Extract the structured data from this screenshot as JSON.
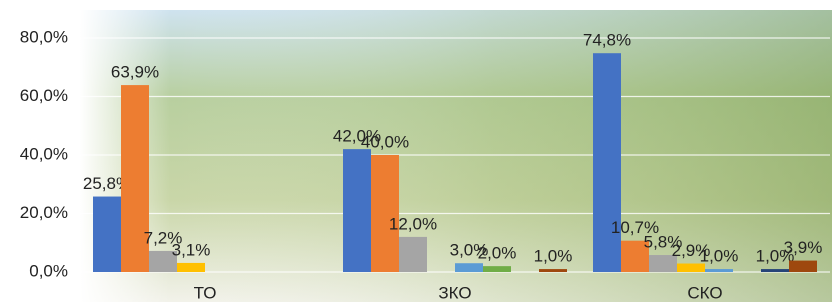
{
  "chart_data": {
    "type": "bar",
    "categories": [
      "ТО",
      "ЗКО",
      "СКО"
    ],
    "series": [
      {
        "color": "#4472c4",
        "values": [
          25.8,
          42.0,
          74.8
        ],
        "value_labels": [
          "25,8%",
          "42,0%",
          "74,8%"
        ]
      },
      {
        "color": "#ed7d31",
        "values": [
          63.9,
          40.0,
          10.7
        ],
        "value_labels": [
          "63,9%",
          "40,0%",
          "10,7%"
        ]
      },
      {
        "color": "#a5a5a5",
        "values": [
          7.2,
          12.0,
          5.8
        ],
        "value_labels": [
          "7,2%",
          "12,0%",
          "5,8%"
        ]
      },
      {
        "color": "#ffc000",
        "values": [
          3.1,
          null,
          2.9
        ],
        "value_labels": [
          "3,1%",
          null,
          "2,9%"
        ]
      },
      {
        "color": "#5b9bd5",
        "values": [
          null,
          3.0,
          1.0
        ],
        "value_labels": [
          null,
          "3,0%",
          "1,0%"
        ]
      },
      {
        "color": "#70ad47",
        "values": [
          null,
          2.0,
          null
        ],
        "value_labels": [
          null,
          "2,0%",
          null
        ]
      },
      {
        "color": "#264478",
        "values": [
          null,
          null,
          1.0
        ],
        "value_labels": [
          null,
          null,
          "1,0%"
        ]
      },
      {
        "color": "#9e480e",
        "values": [
          null,
          1.0,
          3.9
        ],
        "value_labels": [
          null,
          "1,0%",
          "3,9%"
        ]
      }
    ],
    "ylim": [
      0,
      80
    ],
    "yticks": [
      {
        "value": 0,
        "label": "0,0%"
      },
      {
        "value": 20,
        "label": "20,0%"
      },
      {
        "value": 40,
        "label": "40,0%"
      },
      {
        "value": 60,
        "label": "60,0%"
      },
      {
        "value": 80,
        "label": "80,0%"
      }
    ],
    "grid": true
  }
}
